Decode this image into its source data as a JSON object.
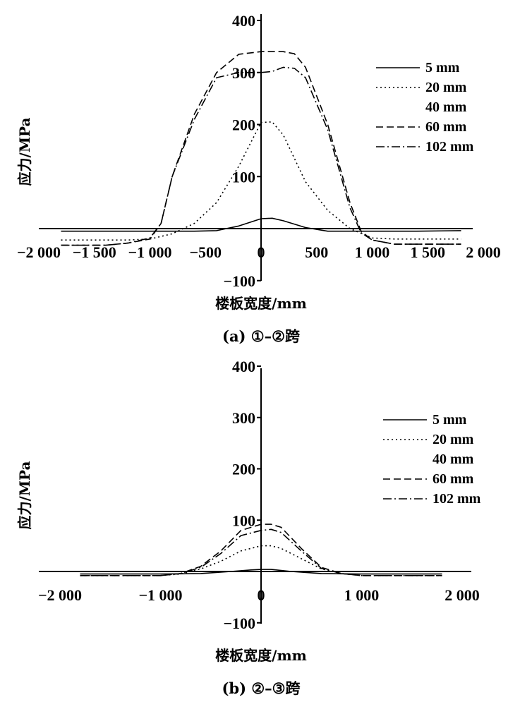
{
  "chart_data": [
    {
      "type": "line",
      "caption": "(a) ①–②跨",
      "xlabel": "楼板宽度/mm",
      "ylabel": "应力/MPa",
      "xlim": [
        -2000,
        2000
      ],
      "ylim": [
        -100,
        400
      ],
      "xticks": [
        -2000,
        -1500,
        -1000,
        -500,
        0,
        500,
        1000,
        1500,
        2000
      ],
      "xtick_labels": [
        "−2 000",
        "−1 500",
        "−1 000",
        "−500",
        "0",
        "500",
        "1 000",
        "1 500",
        "2 000"
      ],
      "yticks": [
        -100,
        100,
        200,
        300,
        400
      ],
      "ytick_labels": [
        "−100",
        "100",
        "200",
        "300",
        "400"
      ],
      "legend": [
        "5 mm",
        "20 mm",
        "40 mm",
        "60 mm",
        "102 mm"
      ],
      "legend_position": "right",
      "series": [
        {
          "name": "5 mm",
          "style": "solid",
          "points": [
            [
              -1800,
              -5
            ],
            [
              -1000,
              -5
            ],
            [
              -600,
              -5
            ],
            [
              -400,
              -4
            ],
            [
              -200,
              5
            ],
            [
              0,
              19
            ],
            [
              100,
              20
            ],
            [
              200,
              15
            ],
            [
              400,
              2
            ],
            [
              600,
              -5
            ],
            [
              1000,
              -5
            ],
            [
              1400,
              -5
            ],
            [
              1800,
              -4
            ]
          ]
        },
        {
          "name": "20 mm",
          "style": "dotted",
          "points": [
            [
              -1800,
              -22
            ],
            [
              -1400,
              -22
            ],
            [
              -1200,
              -22
            ],
            [
              -1000,
              -20
            ],
            [
              -800,
              -10
            ],
            [
              -600,
              10
            ],
            [
              -400,
              50
            ],
            [
              -200,
              120
            ],
            [
              0,
              204
            ],
            [
              100,
              205
            ],
            [
              200,
              180
            ],
            [
              400,
              90
            ],
            [
              600,
              35
            ],
            [
              800,
              0
            ],
            [
              1000,
              -18
            ],
            [
              1200,
              -20
            ],
            [
              1800,
              -20
            ]
          ]
        },
        {
          "name": "40 mm",
          "style": "none",
          "points": []
        },
        {
          "name": "60 mm",
          "style": "dashed",
          "points": [
            [
              -1800,
              -32
            ],
            [
              -1400,
              -32
            ],
            [
              -1200,
              -28
            ],
            [
              -1000,
              -20
            ],
            [
              -900,
              10
            ],
            [
              -800,
              100
            ],
            [
              -600,
              220
            ],
            [
              -400,
              300
            ],
            [
              -200,
              335
            ],
            [
              0,
              340
            ],
            [
              200,
              340
            ],
            [
              300,
              336
            ],
            [
              400,
              310
            ],
            [
              600,
              200
            ],
            [
              800,
              50
            ],
            [
              900,
              -5
            ],
            [
              1000,
              -22
            ],
            [
              1200,
              -30
            ],
            [
              1800,
              -30
            ]
          ]
        },
        {
          "name": "102 mm",
          "style": "dashdot",
          "points": [
            [
              -1800,
              -32
            ],
            [
              -1400,
              -32
            ],
            [
              -1200,
              -28
            ],
            [
              -1000,
              -18
            ],
            [
              -900,
              10
            ],
            [
              -800,
              100
            ],
            [
              -600,
              210
            ],
            [
              -400,
              290
            ],
            [
              -200,
              300
            ],
            [
              0,
              300
            ],
            [
              100,
              302
            ],
            [
              200,
              310
            ],
            [
              300,
              308
            ],
            [
              400,
              290
            ],
            [
              600,
              190
            ],
            [
              800,
              40
            ],
            [
              900,
              -8
            ],
            [
              1000,
              -22
            ],
            [
              1200,
              -30
            ],
            [
              1800,
              -30
            ]
          ]
        }
      ]
    },
    {
      "type": "line",
      "caption": "(b) ②–③跨",
      "xlabel": "楼板宽度/mm",
      "ylabel": "应力/MPa",
      "xlim": [
        -2000,
        2000
      ],
      "ylim": [
        -100,
        400
      ],
      "xticks": [
        -2000,
        -1000,
        0,
        1000,
        2000
      ],
      "xtick_labels": [
        "−2 000",
        "−1 000",
        "0",
        "1 000",
        "2 000"
      ],
      "yticks": [
        -100,
        100,
        200,
        300,
        400
      ],
      "ytick_labels": [
        "−100",
        "100",
        "200",
        "300",
        "400"
      ],
      "legend": [
        "5 mm",
        "20 mm",
        "40 mm",
        "60 mm",
        "102 mm"
      ],
      "legend_position": "right",
      "series": [
        {
          "name": "5 mm",
          "style": "solid",
          "points": [
            [
              -1800,
              -5
            ],
            [
              -1000,
              -5
            ],
            [
              -600,
              -4
            ],
            [
              -300,
              0
            ],
            [
              -100,
              3
            ],
            [
              0,
              4
            ],
            [
              100,
              4
            ],
            [
              300,
              0
            ],
            [
              600,
              -4
            ],
            [
              1000,
              -5
            ],
            [
              1800,
              -5
            ]
          ]
        },
        {
          "name": "20 mm",
          "style": "dotted",
          "points": [
            [
              -1800,
              -8
            ],
            [
              -1000,
              -8
            ],
            [
              -800,
              -5
            ],
            [
              -600,
              5
            ],
            [
              -400,
              20
            ],
            [
              -200,
              40
            ],
            [
              0,
              50
            ],
            [
              100,
              50
            ],
            [
              200,
              45
            ],
            [
              400,
              25
            ],
            [
              600,
              5
            ],
            [
              800,
              -4
            ],
            [
              1000,
              -8
            ],
            [
              1800,
              -8
            ]
          ]
        },
        {
          "name": "40 mm",
          "style": "none",
          "points": []
        },
        {
          "name": "60 mm",
          "style": "dashed",
          "points": [
            [
              -1800,
              -8
            ],
            [
              -1000,
              -8
            ],
            [
              -800,
              -4
            ],
            [
              -600,
              10
            ],
            [
              -400,
              40
            ],
            [
              -200,
              80
            ],
            [
              0,
              92
            ],
            [
              100,
              92
            ],
            [
              200,
              86
            ],
            [
              400,
              45
            ],
            [
              600,
              8
            ],
            [
              800,
              -4
            ],
            [
              1000,
              -8
            ],
            [
              1800,
              -8
            ]
          ]
        },
        {
          "name": "102 mm",
          "style": "dashdot",
          "points": [
            [
              -1800,
              -8
            ],
            [
              -1000,
              -8
            ],
            [
              -800,
              -4
            ],
            [
              -600,
              8
            ],
            [
              -400,
              35
            ],
            [
              -200,
              70
            ],
            [
              0,
              80
            ],
            [
              100,
              82
            ],
            [
              200,
              76
            ],
            [
              400,
              40
            ],
            [
              600,
              6
            ],
            [
              800,
              -4
            ],
            [
              1000,
              -8
            ],
            [
              1800,
              -8
            ]
          ]
        }
      ]
    }
  ]
}
